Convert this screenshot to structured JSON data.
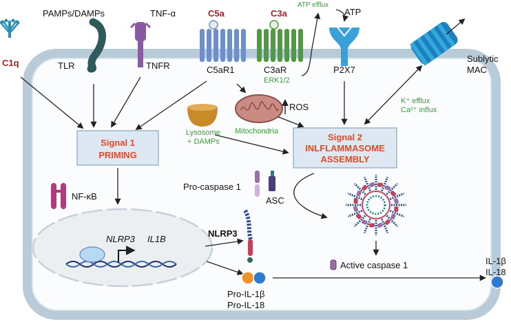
{
  "labels": {
    "c1q": "C1q",
    "pamps": "PAMPs/DAMPs",
    "tnfa": "TNF-α",
    "c5a": "C5a",
    "c3a": "C3a",
    "atp_efflux": "ATP efflux",
    "atp": "ATP",
    "tlr": "TLR",
    "tnfr": "TNFR",
    "c5ar1": "C5aR1",
    "c3ar": "C3aR",
    "erk": "ERK1/2",
    "p2x7": "P2X7",
    "mac_line1": "Sublytic",
    "mac_line2": "MAC",
    "ros": "ROS",
    "mito": "Mitochondria",
    "lyso_line1": "Lysosome",
    "lyso_line2": "+ DAMPs",
    "k_efflux": "K⁺ efflux",
    "ca_influx": "Ca²⁺ influx",
    "signal1_line1": "Signal 1",
    "signal1_line2": "PRIMING",
    "signal2_line1": "Signal 2",
    "signal2_line2": "INLFLAMMASOME",
    "signal2_line3": "ASSEMBLY",
    "nfkb": "NF-κB",
    "procasp": "Pro-caspase 1",
    "asc": "ASC",
    "nlrp3_gene": "NLRP3",
    "il1b_gene": "IL1B",
    "nlrp3_protein": "NLRP3",
    "active_casp": "Active caspase 1",
    "pro_il1b": "Pro-IL-1β",
    "pro_il18": "Pro-IL-18",
    "il1b": "IL-1β",
    "il18": "IL-18"
  },
  "colors": {
    "membrane": "#b9cbd8",
    "membrane_inner": "#e7eef3",
    "c1q": "#2a8fb5",
    "tlr": "#2f5a5a",
    "tnfr": "#8a5aa0",
    "c5ar1": "#6f8fc8",
    "c3ar": "#4e9a3e",
    "p2x7": "#3aa0d8",
    "mac": "#1a80c0",
    "mito": "#c98b84",
    "lysosome": "#c98a2a",
    "signal_box_fill": "#dde8f3",
    "signal_box_stroke": "#8aa4c2",
    "signal_text": "#e04a25",
    "label_red": "#a3222a",
    "label_green": "#3e9a3a",
    "nfkb": "#b23b7c",
    "casp": "#9a6fa8",
    "asc": "#4a3d7a",
    "pro_il1b": "#f0922a",
    "pro_il18": "#2e7ad0",
    "nucleus_fill": "#eceff2"
  }
}
